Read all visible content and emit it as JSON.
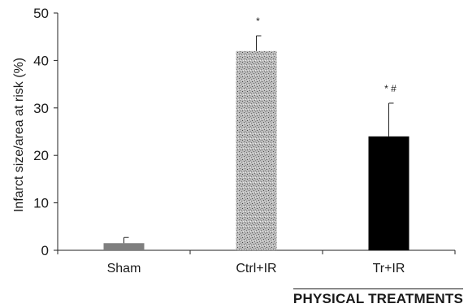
{
  "chart_data": {
    "type": "bar",
    "categories": [
      "Sham",
      "Ctrl+IR",
      "Tr+IR"
    ],
    "values": [
      1.5,
      42,
      24
    ],
    "errors": [
      1.2,
      3.2,
      7
    ],
    "annotations": [
      "",
      "*",
      "*  #"
    ],
    "bar_colors": [
      "#7f7f7f",
      "#b5b5b5",
      "#000000"
    ],
    "bar_pattern": [
      "solid",
      "speckled",
      "solid"
    ],
    "ylabel": "Infarct size/area at risk (%)",
    "xlabel": "",
    "ylim": [
      0,
      50
    ],
    "yticks": [
      "0",
      "10",
      "20",
      "30",
      "40",
      "50"
    ],
    "grid": false,
    "legend": "none"
  },
  "watermark": {
    "text": "PHYSICAL TREATMENTS"
  }
}
